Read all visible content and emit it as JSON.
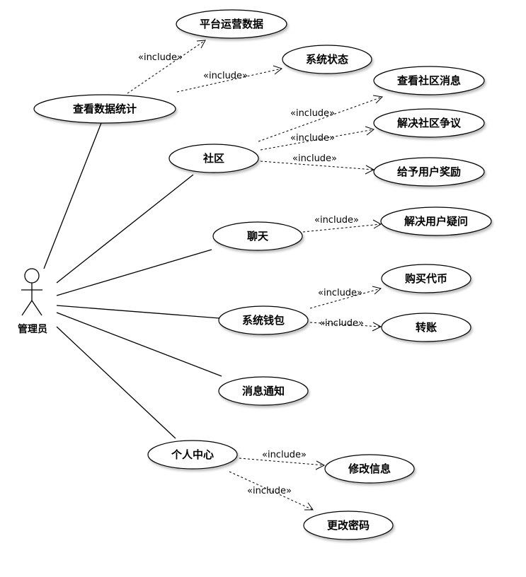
{
  "actor": {
    "label": "管理员"
  },
  "use_cases": {
    "stats": "查看数据统计",
    "platform_data": "平台运营数据",
    "system_status": "系统状态",
    "community": "社区",
    "view_messages": "查看社区消息",
    "resolve_disputes": "解决社区争议",
    "reward_users": "给予用户奖励",
    "chat": "聊天",
    "resolve_questions": "解决用户疑问",
    "wallet": "系统钱包",
    "buy_coins": "购买代币",
    "transfer": "转账",
    "notifications": "消息通知",
    "profile": "个人中心",
    "edit_info": "修改信息",
    "change_password": "更改密码"
  },
  "stereotype": "«include»"
}
